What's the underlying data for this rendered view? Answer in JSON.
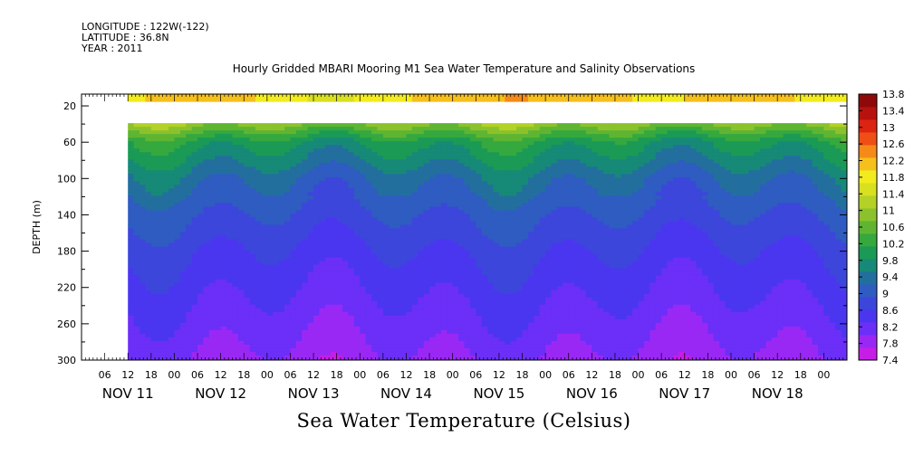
{
  "header": {
    "longitude": "LONGITUDE : 122W(-122)",
    "latitude": "LATITUDE : 36.8N",
    "year": "YEAR : 2011",
    "title": "Hourly Gridded MBARI Mooring M1 Sea Water Temperature and Salinity Observations"
  },
  "footer": {
    "variable_title": "Sea Water Temperature (Celsius)"
  },
  "chart_data": {
    "type": "heatmap",
    "title": "Hourly Gridded MBARI Mooring M1 Sea Water Temperature and Salinity Observations",
    "variable": "Sea Water Temperature (Celsius)",
    "ylabel": "DEPTH (m)",
    "xlabel": "",
    "ylim": [
      300,
      0
    ],
    "y_axis_reversed": true,
    "y_ticks": [
      20,
      60,
      100,
      140,
      180,
      220,
      260,
      300
    ],
    "x_range_hours": [
      -12,
      186
    ],
    "x_tick_labels": [
      "06",
      "12",
      "18",
      "00",
      "06",
      "12",
      "18",
      "00",
      "06",
      "12",
      "18",
      "00",
      "06",
      "12",
      "18",
      "00",
      "06",
      "12",
      "18",
      "00",
      "06",
      "12",
      "18",
      "00",
      "06",
      "12",
      "18",
      "00",
      "06",
      "12",
      "18",
      "00"
    ],
    "day_labels": [
      {
        "label": "NOV 11",
        "hour": 0
      },
      {
        "label": "NOV 12",
        "hour": 24
      },
      {
        "label": "NOV 13",
        "hour": 48
      },
      {
        "label": "NOV 14",
        "hour": 72
      },
      {
        "label": "NOV 15",
        "hour": 96
      },
      {
        "label": "NOV 16",
        "hour": 120
      },
      {
        "label": "NOV 17",
        "hour": 144
      },
      {
        "label": "NOV 18",
        "hour": 168
      }
    ],
    "data_start_hour": 0,
    "data_gap_depths": [
      15,
      40
    ],
    "colorbar": {
      "levels": [
        7.4,
        7.8,
        8.2,
        8.6,
        9,
        9.4,
        9.8,
        10.2,
        10.6,
        11,
        11.4,
        11.8,
        12.2,
        12.6,
        13,
        13.4,
        13.8
      ],
      "colors": [
        "#c61ee6",
        "#9a28f5",
        "#6b2ff8",
        "#4b36f0",
        "#3c46db",
        "#2e5cc0",
        "#226f9e",
        "#178977",
        "#1a9a55",
        "#35a83e",
        "#5fb532",
        "#8bc22c",
        "#b3d126",
        "#d8e020",
        "#f2ec1e",
        "#f6c01c",
        "#f58a18",
        "#ef4e14",
        "#dc2412",
        "#b8120e",
        "#8e0a0a"
      ]
    },
    "surface_temperature_range": [
      12.2,
      13.8
    ],
    "approximate_profile": [
      {
        "depth": 8,
        "temp": 12.8
      },
      {
        "depth": 40,
        "temp": 11.6
      },
      {
        "depth": 60,
        "temp": 10.4
      },
      {
        "depth": 100,
        "temp": 9.5
      },
      {
        "depth": 140,
        "temp": 9.0
      },
      {
        "depth": 180,
        "temp": 8.6
      },
      {
        "depth": 220,
        "temp": 8.3
      },
      {
        "depth": 260,
        "temp": 8.0
      },
      {
        "depth": 300,
        "temp": 7.7
      }
    ]
  }
}
